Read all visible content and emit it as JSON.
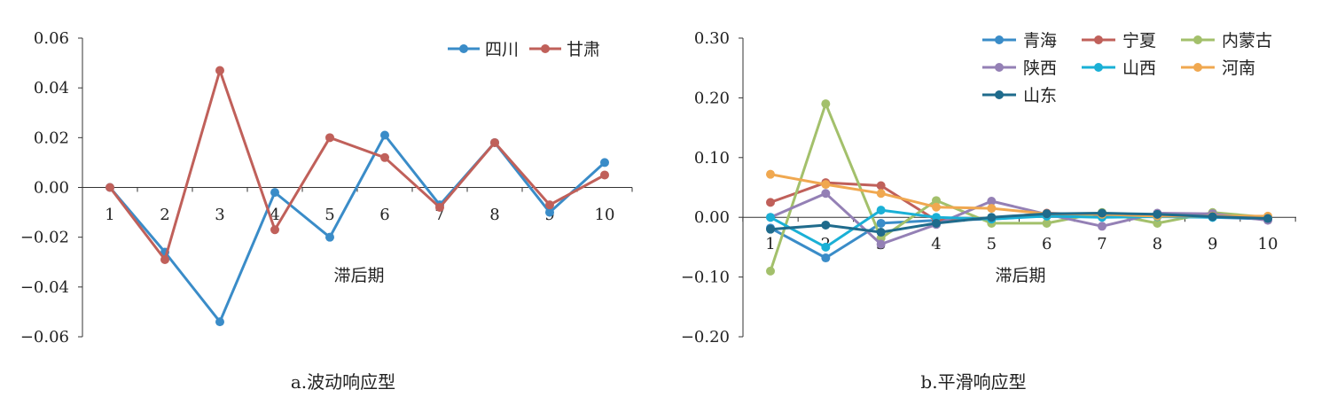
{
  "chart_data": [
    {
      "type": "line",
      "title": "",
      "caption": "a.波动响应型",
      "xlabel": "滞后期",
      "ylabel": "",
      "x": [
        1,
        2,
        3,
        4,
        5,
        6,
        7,
        8,
        9,
        10
      ],
      "ylim": [
        -0.06,
        0.06
      ],
      "yticks": [
        "0.06",
        "0.04",
        "0.02",
        "0.00",
        "−0.02",
        "−0.04",
        "−0.06"
      ],
      "ytick_values": [
        0.06,
        0.04,
        0.02,
        0.0,
        -0.02,
        -0.04,
        -0.06
      ],
      "grid": false,
      "legend_position": "top-right",
      "series": [
        {
          "name": "四川",
          "color": "#3a8cc8",
          "values": [
            0.0,
            -0.026,
            -0.054,
            -0.002,
            -0.02,
            0.021,
            -0.007,
            0.018,
            -0.01,
            0.01
          ]
        },
        {
          "name": "甘肃",
          "color": "#c0605a",
          "values": [
            0.0,
            -0.029,
            0.047,
            -0.017,
            0.02,
            0.012,
            -0.008,
            0.018,
            -0.007,
            0.005
          ]
        }
      ]
    },
    {
      "type": "line",
      "title": "",
      "caption": "b.平滑响应型",
      "xlabel": "滞后期",
      "ylabel": "",
      "x": [
        1,
        2,
        3,
        4,
        5,
        6,
        7,
        8,
        9,
        10
      ],
      "ylim": [
        -0.2,
        0.3
      ],
      "yticks": [
        "0.30",
        "0.20",
        "0.10",
        "0.00",
        "−0.10",
        "−0.20"
      ],
      "ytick_values": [
        0.3,
        0.2,
        0.1,
        0.0,
        -0.1,
        -0.2
      ],
      "grid": false,
      "legend_position": "top-right",
      "series": [
        {
          "name": "青海",
          "color": "#3a8cc8",
          "values": [
            -0.018,
            -0.068,
            -0.01,
            -0.005,
            -0.003,
            0.003,
            0.002,
            0.002,
            0.0,
            -0.003
          ]
        },
        {
          "name": "宁夏",
          "color": "#c0605a",
          "values": [
            0.025,
            0.058,
            0.053,
            -0.005,
            -0.002,
            0.007,
            0.004,
            0.003,
            0.001,
            0.0
          ]
        },
        {
          "name": "内蒙古",
          "color": "#a3c06b",
          "values": [
            -0.09,
            0.19,
            -0.035,
            0.028,
            -0.01,
            -0.01,
            0.008,
            -0.01,
            0.008,
            0.0
          ]
        },
        {
          "name": "陕西",
          "color": "#9480b5",
          "values": [
            0.0,
            0.04,
            -0.045,
            -0.012,
            0.027,
            0.005,
            -0.015,
            0.007,
            0.006,
            -0.005
          ]
        },
        {
          "name": "山西",
          "color": "#1ab0d6",
          "values": [
            0.0,
            -0.05,
            0.012,
            0.0,
            -0.003,
            0.002,
            0.0,
            0.001,
            0.0,
            0.0
          ]
        },
        {
          "name": "河南",
          "color": "#f0a850",
          "values": [
            0.072,
            0.055,
            0.04,
            0.017,
            0.015,
            0.006,
            0.005,
            0.002,
            0.002,
            0.002
          ]
        },
        {
          "name": "山东",
          "color": "#1f6b8c",
          "values": [
            -0.02,
            -0.013,
            -0.025,
            -0.01,
            0.0,
            0.006,
            0.007,
            0.005,
            0.001,
            -0.002
          ]
        }
      ]
    }
  ]
}
